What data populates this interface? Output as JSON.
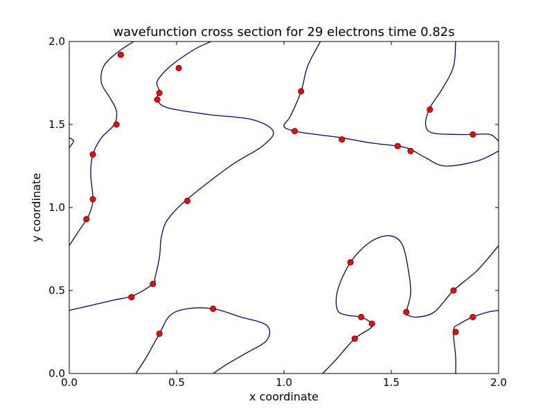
{
  "chart_data": {
    "type": "line",
    "title": "wavefunction cross section for 29 electrons time 0.82s",
    "xlabel": "x coordinate",
    "ylabel": "y coordinate",
    "xlim": [
      0.0,
      2.0
    ],
    "ylim": [
      0.0,
      2.0
    ],
    "xticks": [
      "0.0",
      "0.5",
      "1.0",
      "1.5",
      "2.0"
    ],
    "yticks": [
      "0.0",
      "0.5",
      "1.0",
      "1.5",
      "2.0"
    ],
    "grid": false,
    "colors": {
      "curve": "#000080",
      "marker": "#ff0000",
      "marker_edge": "#000000",
      "frame": "#000000"
    },
    "curves": [
      [
        [
          0.0,
          1.42
        ],
        [
          0.02,
          1.4
        ],
        [
          0.0,
          1.36
        ]
      ],
      [
        [
          0.3,
          2.0
        ],
        [
          0.22,
          1.93
        ],
        [
          0.16,
          1.85
        ],
        [
          0.15,
          1.75
        ],
        [
          0.19,
          1.66
        ],
        [
          0.22,
          1.58
        ],
        [
          0.21,
          1.5
        ],
        [
          0.15,
          1.42
        ],
        [
          0.11,
          1.32
        ],
        [
          0.1,
          1.2
        ],
        [
          0.11,
          1.05
        ],
        [
          0.09,
          0.95
        ],
        [
          0.04,
          0.85
        ],
        [
          0.0,
          0.77
        ]
      ],
      [
        [
          0.66,
          2.0
        ],
        [
          0.58,
          1.95
        ],
        [
          0.47,
          1.85
        ],
        [
          0.41,
          1.76
        ],
        [
          0.42,
          1.7
        ],
        [
          0.41,
          1.65
        ],
        [
          0.46,
          1.6
        ],
        [
          0.65,
          1.56
        ],
        [
          0.85,
          1.53
        ],
        [
          0.95,
          1.46
        ],
        [
          0.9,
          1.37
        ],
        [
          0.75,
          1.25
        ],
        [
          0.55,
          1.05
        ],
        [
          0.46,
          0.93
        ],
        [
          0.43,
          0.83
        ],
        [
          0.42,
          0.7
        ],
        [
          0.4,
          0.58
        ],
        [
          0.39,
          0.54
        ],
        [
          0.3,
          0.47
        ],
        [
          0.2,
          0.44
        ],
        [
          0.0,
          0.38
        ]
      ],
      [
        [
          1.17,
          2.0
        ],
        [
          1.11,
          1.85
        ],
        [
          1.08,
          1.7
        ],
        [
          1.03,
          1.55
        ],
        [
          1.0,
          1.49
        ],
        [
          1.05,
          1.46
        ],
        [
          1.15,
          1.44
        ],
        [
          1.27,
          1.42
        ],
        [
          1.4,
          1.39
        ],
        [
          1.53,
          1.37
        ],
        [
          1.59,
          1.35
        ],
        [
          1.66,
          1.3
        ],
        [
          1.75,
          1.25
        ],
        [
          1.9,
          1.28
        ],
        [
          2.0,
          1.34
        ]
      ],
      [
        [
          1.8,
          2.0
        ],
        [
          1.79,
          1.85
        ],
        [
          1.74,
          1.72
        ],
        [
          1.68,
          1.6
        ],
        [
          1.66,
          1.5
        ],
        [
          1.69,
          1.45
        ],
        [
          1.8,
          1.44
        ],
        [
          1.88,
          1.44
        ],
        [
          1.96,
          1.44
        ],
        [
          2.0,
          1.4
        ]
      ],
      [
        [
          0.31,
          0.0
        ],
        [
          0.36,
          0.1
        ],
        [
          0.42,
          0.24
        ],
        [
          0.47,
          0.35
        ],
        [
          0.55,
          0.39
        ],
        [
          0.67,
          0.39
        ],
        [
          0.8,
          0.34
        ],
        [
          0.92,
          0.29
        ],
        [
          0.92,
          0.2
        ],
        [
          0.82,
          0.12
        ],
        [
          0.74,
          0.06
        ],
        [
          0.67,
          0.0
        ]
      ],
      [
        [
          1.18,
          0.0
        ],
        [
          1.24,
          0.08
        ],
        [
          1.33,
          0.21
        ],
        [
          1.4,
          0.27
        ],
        [
          1.41,
          0.3
        ],
        [
          1.36,
          0.34
        ],
        [
          1.3,
          0.35
        ],
        [
          1.25,
          0.38
        ],
        [
          1.25,
          0.5
        ],
        [
          1.31,
          0.67
        ],
        [
          1.4,
          0.79
        ],
        [
          1.49,
          0.83
        ],
        [
          1.55,
          0.78
        ],
        [
          1.58,
          0.62
        ],
        [
          1.59,
          0.48
        ],
        [
          1.57,
          0.37
        ],
        [
          1.58,
          0.35
        ],
        [
          1.62,
          0.34
        ],
        [
          1.7,
          0.37
        ],
        [
          1.79,
          0.5
        ],
        [
          1.9,
          0.62
        ],
        [
          2.0,
          0.77
        ]
      ],
      [
        [
          1.8,
          0.0
        ],
        [
          1.8,
          0.1
        ],
        [
          1.79,
          0.26
        ],
        [
          1.82,
          0.3
        ],
        [
          1.88,
          0.34
        ],
        [
          1.95,
          0.37
        ],
        [
          2.0,
          0.38
        ]
      ]
    ],
    "points": [
      {
        "x": 0.24,
        "y": 1.92
      },
      {
        "x": 0.51,
        "y": 1.84
      },
      {
        "x": 0.42,
        "y": 1.69
      },
      {
        "x": 0.41,
        "y": 1.65
      },
      {
        "x": 0.22,
        "y": 1.5
      },
      {
        "x": 0.11,
        "y": 1.32
      },
      {
        "x": 0.11,
        "y": 1.05
      },
      {
        "x": 0.08,
        "y": 0.93
      },
      {
        "x": 0.55,
        "y": 1.04
      },
      {
        "x": 0.39,
        "y": 0.54
      },
      {
        "x": 0.29,
        "y": 0.46
      },
      {
        "x": 0.42,
        "y": 0.24
      },
      {
        "x": 0.67,
        "y": 0.39
      },
      {
        "x": 1.08,
        "y": 1.7
      },
      {
        "x": 1.05,
        "y": 1.46
      },
      {
        "x": 1.27,
        "y": 1.41
      },
      {
        "x": 1.53,
        "y": 1.37
      },
      {
        "x": 1.59,
        "y": 1.34
      },
      {
        "x": 1.68,
        "y": 1.59
      },
      {
        "x": 1.88,
        "y": 1.44
      },
      {
        "x": 1.31,
        "y": 0.67
      },
      {
        "x": 1.36,
        "y": 0.34
      },
      {
        "x": 1.41,
        "y": 0.3
      },
      {
        "x": 1.33,
        "y": 0.21
      },
      {
        "x": 1.57,
        "y": 0.37
      },
      {
        "x": 1.79,
        "y": 0.5
      },
      {
        "x": 1.88,
        "y": 0.34
      },
      {
        "x": 1.8,
        "y": 0.25
      }
    ]
  }
}
